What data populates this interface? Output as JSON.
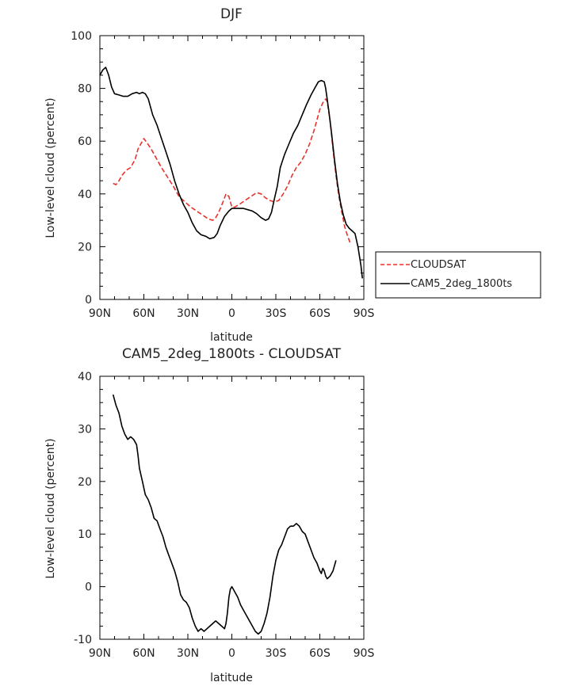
{
  "chart_data": [
    {
      "type": "line",
      "title": "DJF",
      "xlabel": "latitude",
      "ylabel": "Low-level cloud (percent)",
      "xlim": [
        90,
        -90
      ],
      "ylim": [
        0,
        100
      ],
      "xticks": [
        90,
        60,
        30,
        0,
        -30,
        -60,
        -90
      ],
      "xticklabels": [
        "90N",
        "60N",
        "30N",
        "0",
        "30S",
        "60S",
        "90S"
      ],
      "yticks": [
        0,
        20,
        40,
        60,
        80,
        100
      ],
      "yticklabels": [
        "0",
        "20",
        "40",
        "60",
        "80",
        "100"
      ],
      "legend": {
        "position": "right"
      },
      "series": [
        {
          "name": "CLOUDSAT",
          "color": "#e8332d",
          "dash": "dashed",
          "points": [
            [
              81,
              44
            ],
            [
              79,
              43.5
            ],
            [
              77,
              45
            ],
            [
              75,
              47
            ],
            [
              72,
              49
            ],
            [
              69,
              50
            ],
            [
              66,
              53
            ],
            [
              64,
              57
            ],
            [
              62,
              59
            ],
            [
              60,
              61
            ],
            [
              58,
              59.5
            ],
            [
              55,
              57
            ],
            [
              52,
              54
            ],
            [
              48,
              50
            ],
            [
              44,
              46.5
            ],
            [
              40,
              43
            ],
            [
              36,
              39
            ],
            [
              32,
              37
            ],
            [
              28,
              35
            ],
            [
              24,
              33.5
            ],
            [
              20,
              32
            ],
            [
              16,
              30.5
            ],
            [
              13,
              30
            ],
            [
              11,
              31
            ],
            [
              9,
              33
            ],
            [
              6,
              37
            ],
            [
              4,
              40
            ],
            [
              2,
              39
            ],
            [
              0,
              35
            ],
            [
              -2,
              35
            ],
            [
              -5,
              36
            ],
            [
              -9,
              37.5
            ],
            [
              -13,
              39
            ],
            [
              -17,
              40.5
            ],
            [
              -20,
              40
            ],
            [
              -23,
              38.5
            ],
            [
              -26,
              37.5
            ],
            [
              -29,
              37
            ],
            [
              -32,
              37.5
            ],
            [
              -35,
              40
            ],
            [
              -38,
              43
            ],
            [
              -41,
              47
            ],
            [
              -44,
              50
            ],
            [
              -47,
              52
            ],
            [
              -50,
              55
            ],
            [
              -53,
              59
            ],
            [
              -56,
              64
            ],
            [
              -58,
              68
            ],
            [
              -60,
              72
            ],
            [
              -62,
              74.5
            ],
            [
              -64,
              76
            ],
            [
              -65,
              75
            ],
            [
              -67,
              68
            ],
            [
              -69,
              57
            ],
            [
              -71,
              47
            ],
            [
              -73,
              39
            ],
            [
              -75,
              33
            ],
            [
              -77,
              27.5
            ],
            [
              -79,
              24
            ],
            [
              -81,
              21
            ]
          ]
        },
        {
          "name": "CAM5_2deg_1800ts",
          "color": "#000000",
          "dash": "solid",
          "points": [
            [
              90,
              85
            ],
            [
              88,
              87
            ],
            [
              86,
              88
            ],
            [
              84,
              85
            ],
            [
              82,
              80.5
            ],
            [
              80,
              78
            ],
            [
              77,
              77.5
            ],
            [
              74,
              77
            ],
            [
              71,
              77
            ],
            [
              68,
              78
            ],
            [
              65,
              78.5
            ],
            [
              63,
              78
            ],
            [
              61,
              78.5
            ],
            [
              59,
              78
            ],
            [
              57,
              76
            ],
            [
              54,
              70
            ],
            [
              51,
              66
            ],
            [
              48,
              61
            ],
            [
              45,
              56
            ],
            [
              42,
              51
            ],
            [
              39,
              45
            ],
            [
              36,
              40
            ],
            [
              33,
              36
            ],
            [
              30,
              33
            ],
            [
              27,
              29
            ],
            [
              24,
              26
            ],
            [
              21,
              24.5
            ],
            [
              18,
              24
            ],
            [
              15,
              23
            ],
            [
              12,
              23.5
            ],
            [
              10,
              25
            ],
            [
              8,
              28
            ],
            [
              5,
              31.5
            ],
            [
              2,
              33.5
            ],
            [
              0,
              34.5
            ],
            [
              -2,
              34.5
            ],
            [
              -5,
              34.5
            ],
            [
              -8,
              34.5
            ],
            [
              -11,
              34
            ],
            [
              -14,
              33.5
            ],
            [
              -17,
              32.5
            ],
            [
              -20,
              31
            ],
            [
              -23,
              30
            ],
            [
              -25,
              30.5
            ],
            [
              -27,
              33
            ],
            [
              -29,
              38
            ],
            [
              -31,
              43
            ],
            [
              -33,
              50
            ],
            [
              -36,
              55
            ],
            [
              -39,
              59
            ],
            [
              -42,
              63
            ],
            [
              -45,
              66
            ],
            [
              -48,
              70
            ],
            [
              -51,
              74
            ],
            [
              -54,
              77.5
            ],
            [
              -57,
              80.5
            ],
            [
              -59,
              82.5
            ],
            [
              -61,
              83
            ],
            [
              -63,
              82.5
            ],
            [
              -64,
              80
            ],
            [
              -66,
              72
            ],
            [
              -68,
              63
            ],
            [
              -70,
              53
            ],
            [
              -72,
              44
            ],
            [
              -74,
              37
            ],
            [
              -76,
              32
            ],
            [
              -78,
              28.5
            ],
            [
              -80,
              27
            ],
            [
              -82,
              26
            ],
            [
              -84,
              25
            ],
            [
              -86,
              20
            ],
            [
              -88,
              13
            ],
            [
              -89,
              8
            ]
          ]
        }
      ]
    },
    {
      "type": "line",
      "title": "CAM5_2deg_1800ts - CLOUDSAT",
      "xlabel": "latitude",
      "ylabel": "Low-level cloud (percent)",
      "xlim": [
        90,
        -90
      ],
      "ylim": [
        -10,
        40
      ],
      "xticks": [
        90,
        60,
        30,
        0,
        -30,
        -60,
        -90
      ],
      "xticklabels": [
        "90N",
        "60N",
        "30N",
        "0",
        "30S",
        "60S",
        "90S"
      ],
      "yticks": [
        -10,
        0,
        10,
        20,
        30,
        40
      ],
      "yticklabels": [
        "-10",
        "0",
        "10",
        "20",
        "30",
        "40"
      ],
      "series": [
        {
          "color": "#000000",
          "points": [
            [
              81,
              36.5
            ],
            [
              79,
              34.5
            ],
            [
              77,
              33
            ],
            [
              75,
              30.5
            ],
            [
              73,
              29
            ],
            [
              71,
              28
            ],
            [
              69,
              28.5
            ],
            [
              67,
              28
            ],
            [
              65,
              27
            ],
            [
              64,
              25
            ],
            [
              63,
              22.5
            ],
            [
              61,
              20
            ],
            [
              59,
              17.5
            ],
            [
              57,
              16.5
            ],
            [
              55,
              15
            ],
            [
              53,
              13
            ],
            [
              51,
              12.5
            ],
            [
              49,
              11
            ],
            [
              47,
              9.5
            ],
            [
              45,
              7.5
            ],
            [
              43,
              6
            ],
            [
              41,
              4.5
            ],
            [
              39,
              3
            ],
            [
              37,
              1
            ],
            [
              35,
              -1.5
            ],
            [
              33,
              -2.5
            ],
            [
              31,
              -3
            ],
            [
              29,
              -4
            ],
            [
              27,
              -6
            ],
            [
              25,
              -7.5
            ],
            [
              23,
              -8.5
            ],
            [
              21,
              -8
            ],
            [
              19,
              -8.5
            ],
            [
              17,
              -8
            ],
            [
              15,
              -7.5
            ],
            [
              13,
              -7
            ],
            [
              11,
              -6.5
            ],
            [
              9,
              -7
            ],
            [
              7,
              -7.5
            ],
            [
              5,
              -8
            ],
            [
              4,
              -7
            ],
            [
              3,
              -5
            ],
            [
              2,
              -2
            ],
            [
              1,
              -0.5
            ],
            [
              0,
              0
            ],
            [
              -1,
              -0.5
            ],
            [
              -2,
              -1
            ],
            [
              -4,
              -2
            ],
            [
              -6,
              -3.5
            ],
            [
              -8,
              -4.5
            ],
            [
              -10,
              -5.5
            ],
            [
              -12,
              -6.5
            ],
            [
              -14,
              -7.5
            ],
            [
              -16,
              -8.5
            ],
            [
              -18,
              -9
            ],
            [
              -20,
              -8.5
            ],
            [
              -22,
              -7
            ],
            [
              -24,
              -5
            ],
            [
              -26,
              -2
            ],
            [
              -28,
              2
            ],
            [
              -30,
              5
            ],
            [
              -32,
              7
            ],
            [
              -34,
              8
            ],
            [
              -36,
              9.5
            ],
            [
              -38,
              11
            ],
            [
              -40,
              11.5
            ],
            [
              -42,
              11.5
            ],
            [
              -44,
              12
            ],
            [
              -46,
              11.5
            ],
            [
              -48,
              10.5
            ],
            [
              -50,
              10
            ],
            [
              -52,
              8.5
            ],
            [
              -54,
              7
            ],
            [
              -56,
              5.5
            ],
            [
              -58,
              4.5
            ],
            [
              -60,
              3
            ],
            [
              -61,
              2.5
            ],
            [
              -62,
              3.5
            ],
            [
              -63,
              3
            ],
            [
              -64,
              2
            ],
            [
              -65,
              1.5
            ],
            [
              -67,
              2
            ],
            [
              -69,
              3
            ],
            [
              -71,
              5
            ]
          ]
        }
      ]
    }
  ]
}
